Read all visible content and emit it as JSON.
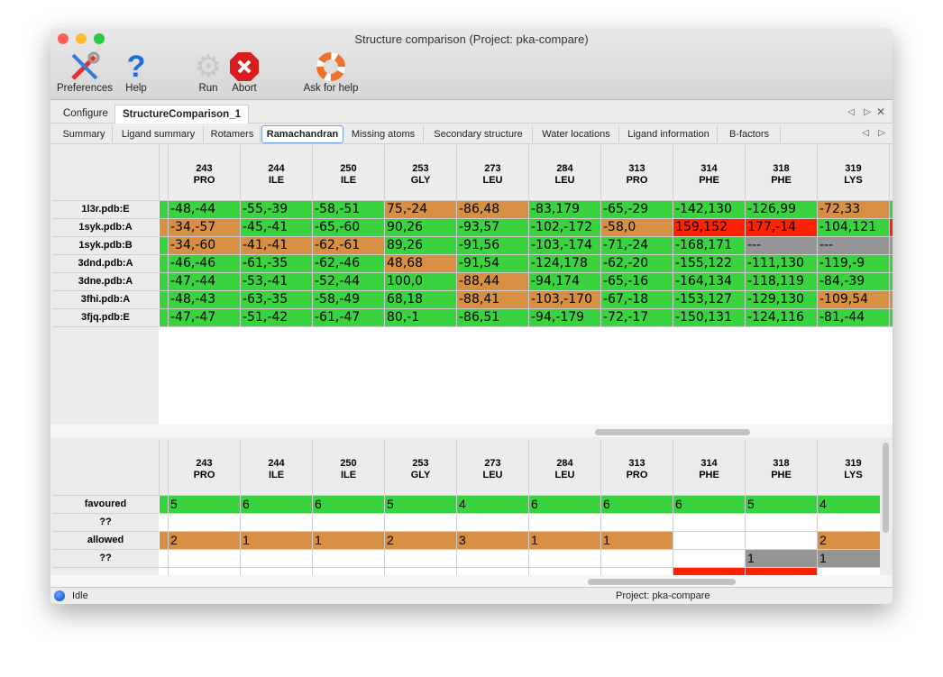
{
  "window": {
    "title": "Structure comparison (Project: pka-compare)"
  },
  "toolbar": [
    {
      "label": "Preferences",
      "icon": "tools-icon"
    },
    {
      "label": "Help",
      "icon": "help-icon"
    },
    {
      "label": "Run",
      "icon": "gear-icon"
    },
    {
      "label": "Abort",
      "icon": "abort-icon"
    },
    {
      "label": "Ask for help",
      "icon": "lifebuoy-icon"
    }
  ],
  "outer_tabs": [
    "Configure",
    "StructureComparison_1"
  ],
  "outer_tab_selected": 1,
  "inner_tabs": [
    "Summary",
    "Ligand summary",
    "Rotamers",
    "Ramachandran",
    "Missing atoms",
    "Secondary structure",
    "Water locations",
    "Ligand information",
    "B-factors"
  ],
  "inner_tab_selected": 3,
  "colors": {
    "G": "#3bd23f",
    "O": "#d79043",
    "R": "#ff2200",
    "X": "#959595",
    "W": "#ffffff"
  },
  "columns": [
    [
      "243",
      "PRO"
    ],
    [
      "244",
      "ILE"
    ],
    [
      "250",
      "ILE"
    ],
    [
      "253",
      "GLY"
    ],
    [
      "273",
      "LEU"
    ],
    [
      "284",
      "LEU"
    ],
    [
      "313",
      "PRO"
    ],
    [
      "314",
      "PHE"
    ],
    [
      "318",
      "PHE"
    ],
    [
      "319",
      "LYS"
    ]
  ],
  "top_table": {
    "rows": [
      {
        "label": "1l3r.pdb:E",
        "edge": "G",
        "tail": "G",
        "values": [
          "-48,-44",
          "-55,-39",
          "-58,-51",
          "75,-24",
          "-86,48",
          "-83,179",
          "-65,-29",
          "-142,130",
          "-126,99",
          "-72,33"
        ],
        "status": "GGGOOGGGGO"
      },
      {
        "label": "1syk.pdb:A",
        "edge": "O",
        "tail": "R",
        "values": [
          "-34,-57",
          "-45,-41",
          "-65,-60",
          "90,26",
          "-93,57",
          "-102,-172",
          "-58,0",
          "159,152",
          "177,-14",
          "-104,121"
        ],
        "status": "OGGGGGORRG"
      },
      {
        "label": "1syk.pdb:B",
        "edge": "G",
        "tail": "X",
        "values": [
          "-34,-60",
          "-41,-41",
          "-62,-61",
          "89,26",
          "-91,56",
          "-103,-174",
          "-71,-24",
          "-168,171",
          "---",
          "---"
        ],
        "status": "OOOGGGGGXX"
      },
      {
        "label": "3dnd.pdb:A",
        "edge": "G",
        "tail": "G",
        "values": [
          "-46,-46",
          "-61,-35",
          "-62,-46",
          "48,68",
          "-91,54",
          "-124,178",
          "-62,-20",
          "-155,122",
          "-111,130",
          "-119,-9"
        ],
        "status": "GGGOGGGGGG"
      },
      {
        "label": "3dne.pdb:A",
        "edge": "G",
        "tail": "G",
        "values": [
          "-47,-44",
          "-53,-41",
          "-52,-44",
          "100,0",
          "-88,44",
          "-94,174",
          "-65,-16",
          "-164,134",
          "-118,119",
          "-84,-39"
        ],
        "status": "GGGGOGGGGG"
      },
      {
        "label": "3fhi.pdb:A",
        "edge": "G",
        "tail": "O",
        "values": [
          "-48,-43",
          "-63,-35",
          "-58,-49",
          "68,18",
          "-88,41",
          "-103,-170",
          "-67,-18",
          "-153,127",
          "-129,130",
          "-109,54"
        ],
        "status": "GGGGOOGGGO"
      },
      {
        "label": "3fjq.pdb:E",
        "edge": "G",
        "tail": "G",
        "values": [
          "-47,-47",
          "-51,-42",
          "-61,-47",
          "80,-1",
          "-86,51",
          "-94,-179",
          "-72,-17",
          "-150,131",
          "-124,116",
          "-81,-44"
        ],
        "status": "GGGGGGGGGG"
      }
    ]
  },
  "bottom_table": {
    "rows": [
      {
        "label": "favoured",
        "edge": "G",
        "values": [
          "5",
          "6",
          "6",
          "5",
          "4",
          "6",
          "6",
          "6",
          "5",
          "4"
        ],
        "status": "GGGGGGGGGG"
      },
      {
        "label": "??",
        "edge": "W",
        "values": [
          "",
          "",
          "",
          "",
          "",
          "",
          "",
          "",
          "",
          ""
        ],
        "status": "WWWWWWWWWW"
      },
      {
        "label": "allowed",
        "edge": "O",
        "values": [
          "2",
          "1",
          "1",
          "2",
          "3",
          "1",
          "1",
          "",
          "",
          "2"
        ],
        "status": "OOOOOOOWWO"
      },
      {
        "label": "??",
        "edge": "W",
        "values": [
          "",
          "",
          "",
          "",
          "",
          "",
          "",
          "",
          "1",
          "1"
        ],
        "status": "WWWWWWWWXX"
      },
      {
        "label": "",
        "edge": "W",
        "values": [
          "",
          "",
          "",
          "",
          "",
          "",
          "",
          "",
          "",
          ""
        ],
        "status": "WWWWWWWRRW"
      }
    ]
  },
  "status_bar": {
    "state": "Idle",
    "project": "Project: pka-compare"
  }
}
